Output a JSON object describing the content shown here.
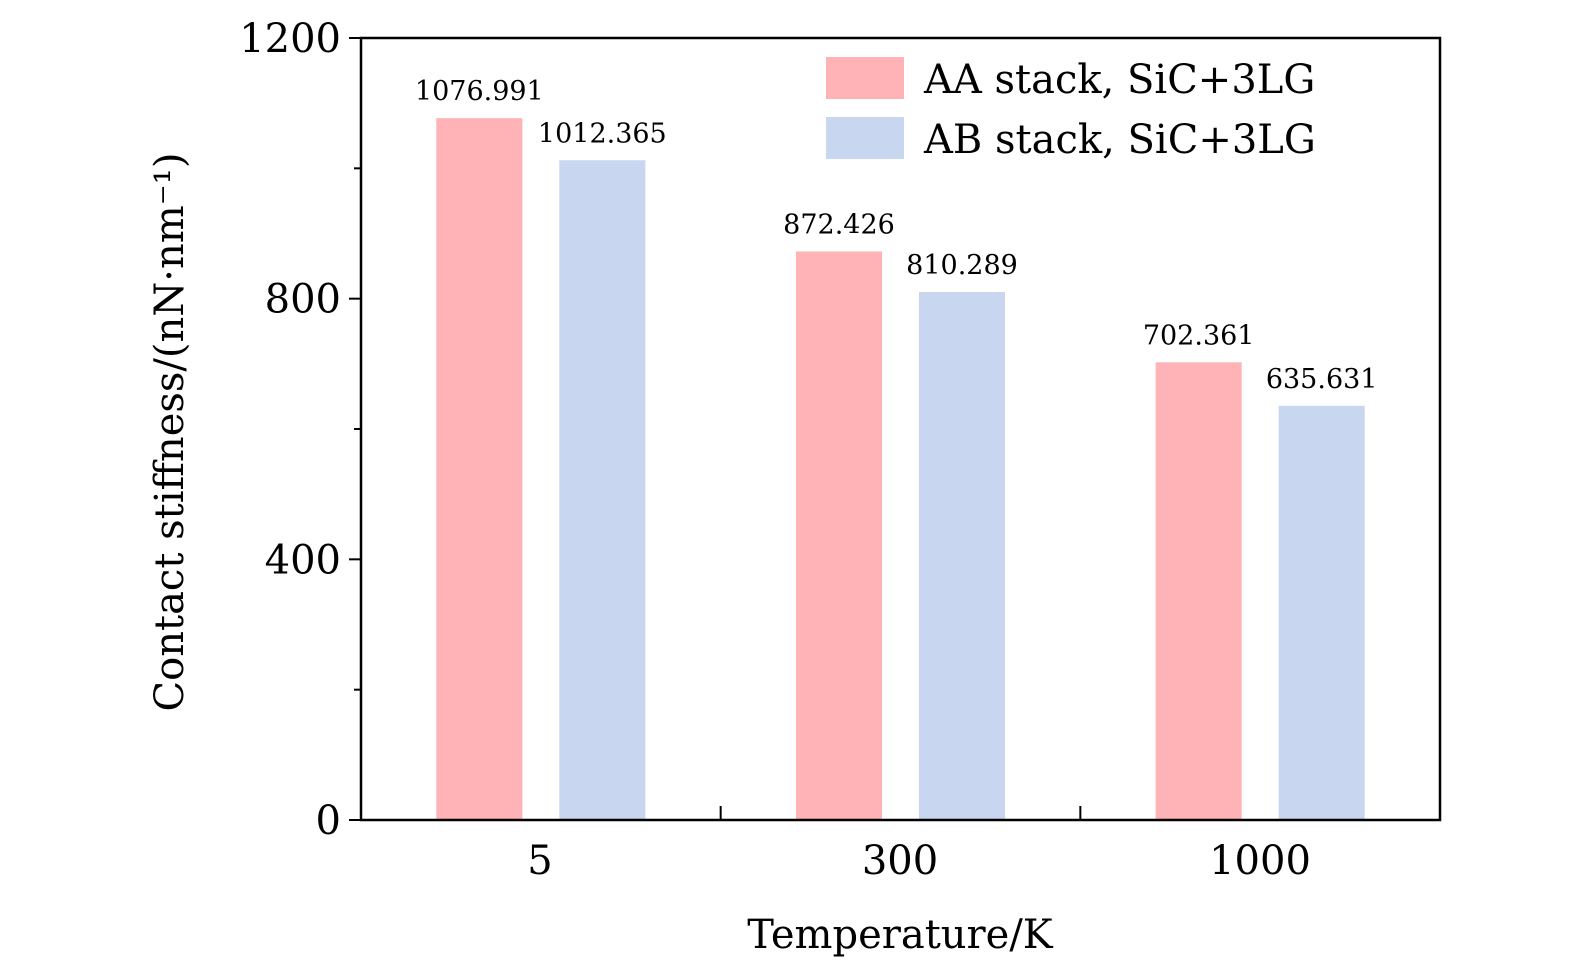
{
  "chart_data": {
    "type": "bar",
    "title": "",
    "xlabel": "Temperature/K",
    "ylabel": "Contact stiffness/(nN·nm⁻¹)",
    "categories": [
      "5",
      "300",
      "1000"
    ],
    "ylim": [
      0,
      1200
    ],
    "yticks": [
      0,
      400,
      800,
      1200
    ],
    "yticks_minor": [
      200,
      600,
      1000
    ],
    "series": [
      {
        "name": "AA stack, SiC+3LG",
        "color": "#ffb3b6",
        "values": [
          1076.991,
          872.426,
          702.361
        ],
        "labels": [
          "1076.991",
          "872.426",
          "702.361"
        ]
      },
      {
        "name": "AB stack, SiC+3LG",
        "color": "#c8d6ef",
        "values": [
          1012.365,
          810.289,
          635.631
        ],
        "labels": [
          "1012.365",
          "810.289",
          "635.631"
        ]
      }
    ],
    "legend_position": "top-right",
    "grid": false
  }
}
